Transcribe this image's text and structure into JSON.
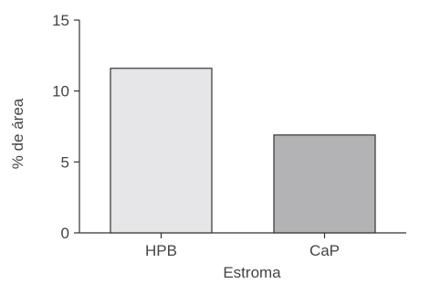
{
  "chart_data": {
    "type": "bar",
    "categories": [
      "HPB",
      "CaP"
    ],
    "values": [
      11.6,
      6.9
    ],
    "bar_colors": [
      "#e6e6e8",
      "#b3b3b5"
    ],
    "bar_stroke": "#333333",
    "axis_color": "#333333",
    "title": "",
    "xlabel": "Estroma",
    "ylabel": "% de área",
    "ylim": [
      0,
      15
    ],
    "yticks": [
      0,
      5,
      10,
      15
    ],
    "grid": false,
    "legend": "none"
  }
}
